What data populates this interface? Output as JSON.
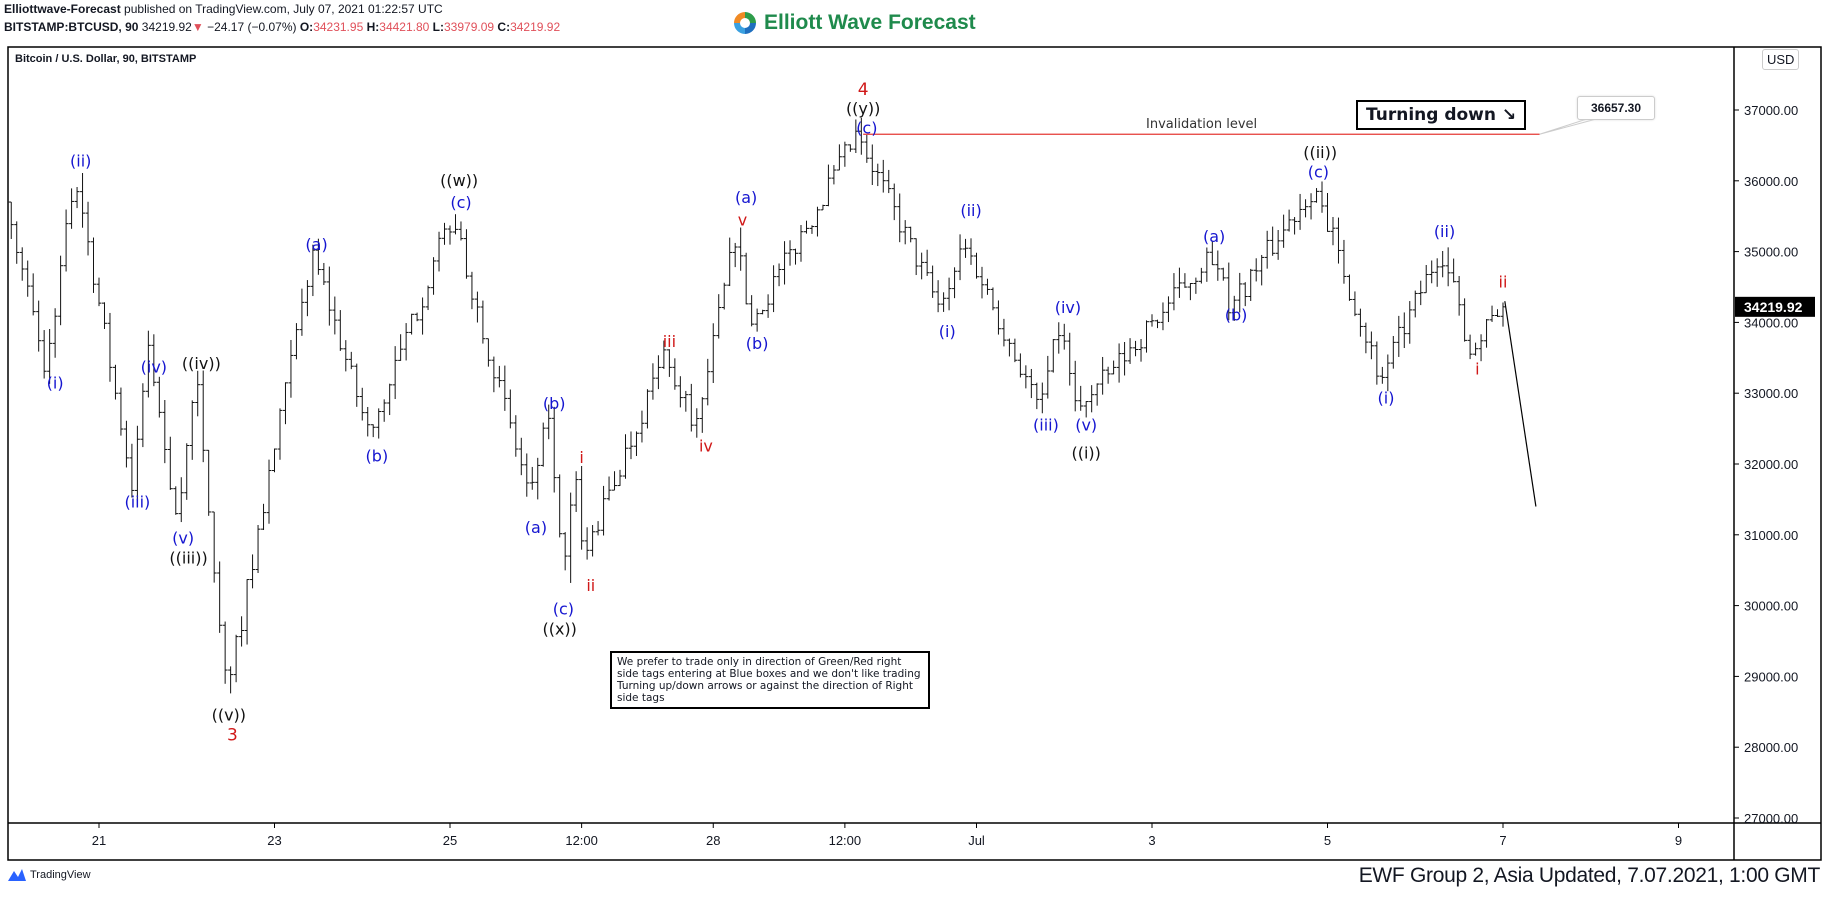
{
  "header": {
    "publisher": "Elliottwave-Forecast",
    "published_text": "published on TradingView.com, July 07, 2021 01:22:57 UTC",
    "symbol": "BITSTAMP:BTCUSD, 90",
    "last": "34219.92",
    "change": "−24.17 (−0.07%)",
    "change_direction_icon": "triangle-down-icon",
    "open_label": "O:",
    "open": "34231.95",
    "high_label": "H:",
    "high": "34421.80",
    "low_label": "L:",
    "low": "33979.09",
    "close_label": "C:",
    "close": "34219.92"
  },
  "brand": {
    "name": "Elliott Wave Forecast",
    "color": "#1f8a4c"
  },
  "chart_title": "Bitcoin / U.S. Dollar, 90, BITSTAMP",
  "currency": "USD",
  "note": "We prefer to trade only in direction of Green/Red right side tags entering at Blue boxes and we don't like trading Turning up/down arrows or against the direction of Right side tags",
  "turning_box": "Turning down ↘",
  "invalidation": {
    "label": "Invalidation level",
    "price": 36657.3,
    "price_label": "36657.30",
    "from": "2021-06-29T17:00",
    "to": "2021-07-07T10:00",
    "color": "#e53935"
  },
  "footer": {
    "tradingview": "TradingView",
    "text": "EWF Group 2, Asia Updated, 7.07.2021, 1:00 GMT"
  },
  "chart_data": {
    "type": "ohlc",
    "ylim": [
      27000,
      37500
    ],
    "yticks": [
      27000,
      28000,
      29000,
      30000,
      31000,
      32000,
      33000,
      34000,
      35000,
      36000,
      37000
    ],
    "ytick_labels": [
      "27000.00",
      "28000.00",
      "29000.00",
      "30000.00",
      "31000.00",
      "32000.00",
      "33000.00",
      "34000.00",
      "35000.00",
      "36000.00",
      "37000.00"
    ],
    "last_price": 34219.92,
    "last_price_label": "34219.92",
    "xticks": [
      {
        "label": "21",
        "t": "2021-06-21T00:00"
      },
      {
        "label": "23",
        "t": "2021-06-23T00:00"
      },
      {
        "label": "25",
        "t": "2021-06-25T00:00"
      },
      {
        "label": "12:00",
        "t": "2021-06-26T12:00"
      },
      {
        "label": "28",
        "t": "2021-06-28T00:00"
      },
      {
        "label": "12:00",
        "t": "2021-06-29T12:00"
      },
      {
        "label": "Jul",
        "t": "2021-07-01T00:00"
      },
      {
        "label": "3",
        "t": "2021-07-03T00:00"
      },
      {
        "label": "5",
        "t": "2021-07-05T00:00"
      },
      {
        "label": "7",
        "t": "2021-07-07T00:00"
      },
      {
        "label": "9",
        "t": "2021-07-09T00:00"
      }
    ],
    "swings": [
      [
        "2021-06-20T00:00",
        35700
      ],
      [
        "2021-06-20T11:00",
        33360
      ],
      [
        "2021-06-20T19:00",
        36110
      ],
      [
        "2021-06-21T10:30",
        31720
      ],
      [
        "2021-06-21T15:00",
        33610
      ],
      [
        "2021-06-21T23:00",
        31180
      ],
      [
        "2021-06-22T04:00",
        33250
      ],
      [
        "2021-06-22T12:30",
        28760
      ],
      [
        "2021-06-23T12:00",
        35000
      ],
      [
        "2021-06-24T03:30",
        32380
      ],
      [
        "2021-06-25T02:00",
        35500
      ],
      [
        "2021-06-25T23:30",
        31500
      ],
      [
        "2021-06-26T04:30",
        32700
      ],
      [
        "2021-06-26T08:30",
        30320
      ],
      [
        "2021-06-26T11:30",
        31970
      ],
      [
        "2021-06-26T14:00",
        30650
      ],
      [
        "2021-06-27T12:00",
        33530
      ],
      [
        "2021-06-27T21:00",
        32540
      ],
      [
        "2021-06-28T08:00",
        35340
      ],
      [
        "2021-06-28T11:30",
        33940
      ],
      [
        "2021-06-29T17:00",
        36657
      ],
      [
        "2021-06-30T15:30",
        34190
      ],
      [
        "2021-06-30T22:00",
        35170
      ],
      [
        "2021-07-01T18:30",
        32790
      ],
      [
        "2021-07-02T00:30",
        33980
      ],
      [
        "2021-07-02T05:30",
        32760
      ],
      [
        "2021-07-03T17:00",
        34930
      ],
      [
        "2021-07-03T23:00",
        34240
      ],
      [
        "2021-07-04T22:00",
        35950
      ],
      [
        "2021-07-05T16:00",
        33200
      ],
      [
        "2021-07-06T08:30",
        35060
      ],
      [
        "2021-07-06T17:00",
        33530
      ],
      [
        "2021-07-07T00:00",
        34220
      ]
    ],
    "projection": [
      [
        "2021-07-07T00:30",
        34300
      ],
      [
        "2021-07-07T09:00",
        31400
      ]
    ],
    "colors": {
      "blue": "#1515d0",
      "red": "#d01818",
      "black": "#111111",
      "bars": "#111111"
    },
    "wave_labels": [
      {
        "text": "(i)",
        "color": "blue",
        "t": "2021-06-20T12:00",
        "p": 33150
      },
      {
        "text": "(ii)",
        "color": "blue",
        "t": "2021-06-20T19:00",
        "p": 36290
      },
      {
        "text": "(iii)",
        "color": "blue",
        "t": "2021-06-21T10:30",
        "p": 31470
      },
      {
        "text": "(iv)",
        "color": "blue",
        "t": "2021-06-21T15:00",
        "p": 33380
      },
      {
        "text": "((iv))",
        "color": "black",
        "t": "2021-06-22T04:00",
        "p": 33430
      },
      {
        "text": "(v)",
        "color": "blue",
        "t": "2021-06-21T23:00",
        "p": 30960
      },
      {
        "text": "((iii))",
        "color": "black",
        "t": "2021-06-22T00:30",
        "p": 30680
      },
      {
        "text": "((v))",
        "color": "black",
        "t": "2021-06-22T11:30",
        "p": 28460
      },
      {
        "text": "3",
        "color": "red",
        "t": "2021-06-22T12:30",
        "p": 28180
      },
      {
        "text": "(a)",
        "color": "blue",
        "t": "2021-06-23T11:30",
        "p": 35110
      },
      {
        "text": "(b)",
        "color": "blue",
        "t": "2021-06-24T04:00",
        "p": 32120
      },
      {
        "text": "((w))",
        "color": "black",
        "t": "2021-06-25T02:30",
        "p": 36010
      },
      {
        "text": "(c)",
        "color": "blue",
        "t": "2021-06-25T03:00",
        "p": 35700
      },
      {
        "text": "(a)",
        "color": "blue",
        "t": "2021-06-25T23:30",
        "p": 31110
      },
      {
        "text": "(b)",
        "color": "blue",
        "t": "2021-06-26T04:30",
        "p": 32860
      },
      {
        "text": "(c)",
        "color": "blue",
        "t": "2021-06-26T07:00",
        "p": 29960
      },
      {
        "text": "((x))",
        "color": "black",
        "t": "2021-06-26T06:00",
        "p": 29680
      },
      {
        "text": "i",
        "color": "red",
        "t": "2021-06-26T12:00",
        "p": 32100
      },
      {
        "text": "ii",
        "color": "red",
        "t": "2021-06-26T14:30",
        "p": 30290
      },
      {
        "text": "iii",
        "color": "red",
        "t": "2021-06-27T12:00",
        "p": 33740
      },
      {
        "text": "iv",
        "color": "red",
        "t": "2021-06-27T22:00",
        "p": 32260
      },
      {
        "text": "(a)",
        "color": "blue",
        "t": "2021-06-28T09:00",
        "p": 35770
      },
      {
        "text": "v",
        "color": "red",
        "t": "2021-06-28T08:00",
        "p": 35450
      },
      {
        "text": "(b)",
        "color": "blue",
        "t": "2021-06-28T12:00",
        "p": 33710
      },
      {
        "text": "4",
        "color": "red",
        "t": "2021-06-29T17:00",
        "p": 37300
      },
      {
        "text": "((y))",
        "color": "black",
        "t": "2021-06-29T17:00",
        "p": 37030
      },
      {
        "text": "(c)",
        "color": "blue",
        "t": "2021-06-29T18:00",
        "p": 36750
      },
      {
        "text": "(ii)",
        "color": "blue",
        "t": "2021-06-30T22:30",
        "p": 35590
      },
      {
        "text": "(i)",
        "color": "blue",
        "t": "2021-06-30T16:00",
        "p": 33880
      },
      {
        "text": "(iv)",
        "color": "blue",
        "t": "2021-07-02T01:00",
        "p": 34220
      },
      {
        "text": "(iii)",
        "color": "blue",
        "t": "2021-07-01T19:00",
        "p": 32560
      },
      {
        "text": "(v)",
        "color": "blue",
        "t": "2021-07-02T06:00",
        "p": 32560
      },
      {
        "text": "((i))",
        "color": "black",
        "t": "2021-07-02T06:00",
        "p": 32160
      },
      {
        "text": "(a)",
        "color": "blue",
        "t": "2021-07-03T17:00",
        "p": 35220
      },
      {
        "text": "(b)",
        "color": "blue",
        "t": "2021-07-03T23:00",
        "p": 34110
      },
      {
        "text": "((ii))",
        "color": "black",
        "t": "2021-07-04T22:00",
        "p": 36410
      },
      {
        "text": "(c)",
        "color": "blue",
        "t": "2021-07-04T21:30",
        "p": 36130
      },
      {
        "text": "(ii)",
        "color": "blue",
        "t": "2021-07-06T08:00",
        "p": 35290
      },
      {
        "text": "(i)",
        "color": "blue",
        "t": "2021-07-05T16:00",
        "p": 32940
      },
      {
        "text": "ii",
        "color": "red",
        "t": "2021-07-07T00:00",
        "p": 34580
      },
      {
        "text": "i",
        "color": "red",
        "t": "2021-07-06T17:00",
        "p": 33350
      }
    ]
  }
}
